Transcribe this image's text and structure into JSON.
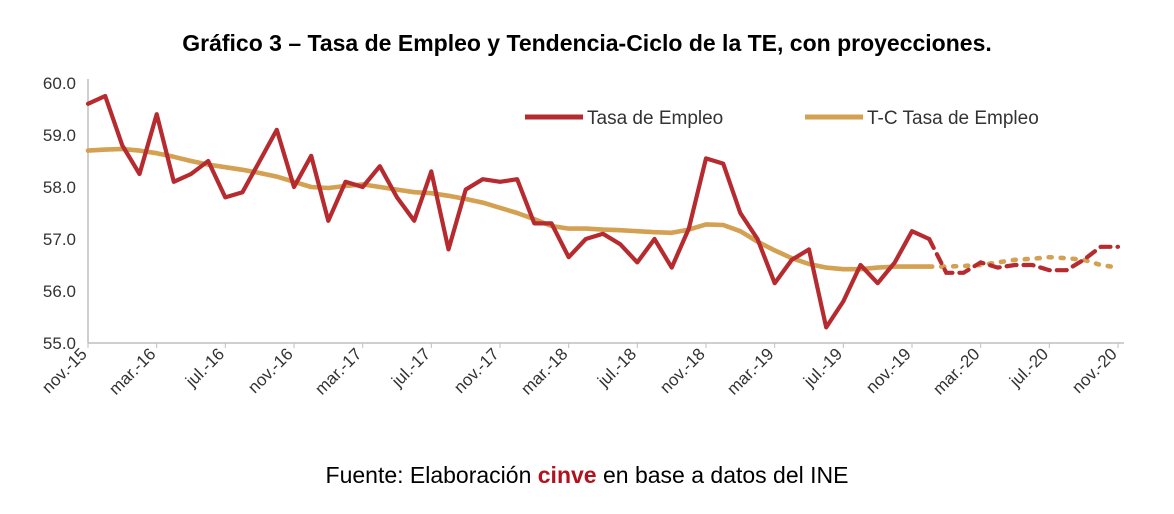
{
  "chart_data": {
    "type": "line",
    "title": "Gráfico 3 – Tasa de Empleo y Tendencia-Ciclo de la TE, con proyecciones.",
    "source": {
      "prefix": "Fuente: Elaboración ",
      "brand": "cinve",
      "suffix": " en base a datos del INE"
    },
    "ylim": [
      55.0,
      60.0
    ],
    "yticks": [
      55.0,
      56.0,
      57.0,
      58.0,
      59.0,
      60.0
    ],
    "x_tick_labels": [
      "nov.-15",
      "mar.-16",
      "jul.-16",
      "nov.-16",
      "mar.-17",
      "jul.-17",
      "nov.-17",
      "mar.-18",
      "jul.-18",
      "nov.-18",
      "mar.-19",
      "jul.-19",
      "nov.-19",
      "mar.-20",
      "jul.-20",
      "nov.-20"
    ],
    "x_tick_every": 4,
    "legend": {
      "position": "top-right"
    },
    "grid": false,
    "observed_months": 50,
    "series": [
      {
        "name": "Tasa de Empleo",
        "color": "#b52b2f",
        "values": [
          59.6,
          59.75,
          58.8,
          58.25,
          59.4,
          58.1,
          58.25,
          58.5,
          57.8,
          57.9,
          58.5,
          59.1,
          58.0,
          58.6,
          57.35,
          58.1,
          58.0,
          58.4,
          57.8,
          57.35,
          58.3,
          56.8,
          57.95,
          58.15,
          58.1,
          58.15,
          57.3,
          57.3,
          56.65,
          57.0,
          57.1,
          56.9,
          56.55,
          57.0,
          56.45,
          57.2,
          58.55,
          58.45,
          57.5,
          57.0,
          56.15,
          56.6,
          56.8,
          55.3,
          55.8,
          56.5,
          56.15,
          56.55,
          57.15,
          57.0,
          56.35,
          56.35,
          56.55,
          56.45,
          56.5,
          56.5,
          56.4,
          56.4,
          56.6,
          56.85,
          56.85
        ]
      },
      {
        "name": "T-C Tasa de Empleo",
        "color": "#d4a052",
        "values": [
          58.7,
          58.72,
          58.73,
          58.7,
          58.65,
          58.58,
          58.5,
          58.43,
          58.38,
          58.33,
          58.27,
          58.2,
          58.1,
          58.0,
          57.98,
          58.02,
          58.05,
          58.0,
          57.95,
          57.9,
          57.88,
          57.83,
          57.77,
          57.7,
          57.6,
          57.5,
          57.38,
          57.25,
          57.2,
          57.2,
          57.18,
          57.17,
          57.15,
          57.13,
          57.12,
          57.18,
          57.28,
          57.27,
          57.15,
          56.95,
          56.78,
          56.63,
          56.52,
          56.45,
          56.42,
          56.42,
          56.45,
          56.47,
          56.47,
          56.47,
          56.47,
          56.48,
          56.5,
          56.55,
          56.6,
          56.62,
          56.65,
          56.63,
          56.6,
          56.5,
          56.45
        ]
      }
    ]
  }
}
